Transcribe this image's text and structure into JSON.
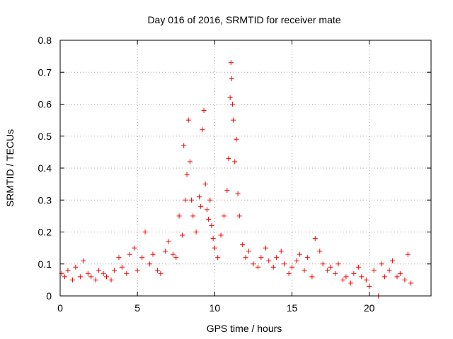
{
  "chart_data": {
    "type": "scatter",
    "title": "Day 016 of 2016, SRMTID for receiver mate",
    "xlabel": "GPS time / hours",
    "ylabel": "SRMTID / TECUs",
    "xlim": [
      0,
      24
    ],
    "ylim": [
      0,
      0.8
    ],
    "x_ticks": [
      0,
      5,
      10,
      15,
      20
    ],
    "x_tick_labels": [
      "0",
      "5",
      "10",
      "15",
      "20"
    ],
    "y_ticks": [
      0,
      0.1,
      0.2,
      0.3,
      0.4,
      0.5,
      0.6,
      0.7,
      0.8
    ],
    "y_tick_labels": [
      "0",
      "0.1",
      "0.2",
      "0.3",
      "0.4",
      "0.5",
      "0.6",
      "0.7",
      "0.8"
    ],
    "grid": true,
    "marker": "+",
    "color": "#ff0000",
    "series": [
      {
        "name": "SRMTID",
        "x": [
          0.1,
          0.3,
          0.5,
          0.8,
          1.0,
          1.3,
          1.5,
          1.8,
          2.0,
          2.3,
          2.5,
          2.8,
          3.0,
          3.3,
          3.5,
          3.8,
          4.0,
          4.3,
          4.5,
          4.8,
          5.0,
          5.3,
          5.5,
          5.8,
          6.0,
          6.3,
          6.5,
          6.8,
          7.0,
          7.3,
          7.5,
          7.7,
          7.9,
          8.0,
          8.1,
          8.2,
          8.3,
          8.4,
          8.5,
          8.6,
          8.8,
          9.0,
          9.1,
          9.2,
          9.3,
          9.4,
          9.5,
          9.6,
          9.7,
          9.8,
          9.9,
          10.0,
          10.2,
          10.4,
          10.6,
          10.8,
          10.9,
          11.0,
          11.05,
          11.1,
          11.15,
          11.2,
          11.3,
          11.4,
          11.5,
          11.6,
          11.8,
          12.0,
          12.2,
          12.5,
          12.8,
          13.0,
          13.3,
          13.5,
          13.8,
          14.0,
          14.3,
          14.5,
          14.8,
          15.0,
          15.3,
          15.5,
          15.8,
          16.0,
          16.3,
          16.5,
          16.8,
          17.0,
          17.3,
          17.5,
          17.8,
          18.0,
          18.3,
          18.5,
          18.8,
          19.0,
          19.3,
          19.5,
          19.8,
          20.0,
          20.3,
          20.6,
          20.8,
          21.0,
          21.3,
          21.5,
          21.8,
          22.0,
          22.3,
          22.5,
          22.7
        ],
        "values": [
          0.07,
          0.06,
          0.08,
          0.05,
          0.09,
          0.06,
          0.11,
          0.07,
          0.06,
          0.05,
          0.08,
          0.07,
          0.06,
          0.05,
          0.08,
          0.12,
          0.09,
          0.07,
          0.13,
          0.15,
          0.08,
          0.12,
          0.2,
          0.1,
          0.13,
          0.08,
          0.07,
          0.14,
          0.17,
          0.13,
          0.12,
          0.25,
          0.19,
          0.47,
          0.3,
          0.38,
          0.55,
          0.42,
          0.3,
          0.25,
          0.2,
          0.31,
          0.28,
          0.52,
          0.58,
          0.35,
          0.27,
          0.24,
          0.3,
          0.22,
          0.18,
          0.15,
          0.12,
          0.19,
          0.25,
          0.33,
          0.43,
          0.62,
          0.73,
          0.68,
          0.6,
          0.55,
          0.42,
          0.49,
          0.32,
          0.25,
          0.16,
          0.12,
          0.14,
          0.1,
          0.09,
          0.12,
          0.15,
          0.11,
          0.09,
          0.12,
          0.14,
          0.1,
          0.07,
          0.09,
          0.11,
          0.13,
          0.08,
          0.12,
          0.06,
          0.18,
          0.14,
          0.1,
          0.08,
          0.09,
          0.07,
          0.1,
          0.05,
          0.06,
          0.04,
          0.07,
          0.09,
          0.06,
          0.05,
          0.03,
          0.08,
          0.0,
          0.1,
          0.06,
          0.08,
          0.11,
          0.06,
          0.07,
          0.05,
          0.13,
          0.04
        ]
      }
    ]
  }
}
